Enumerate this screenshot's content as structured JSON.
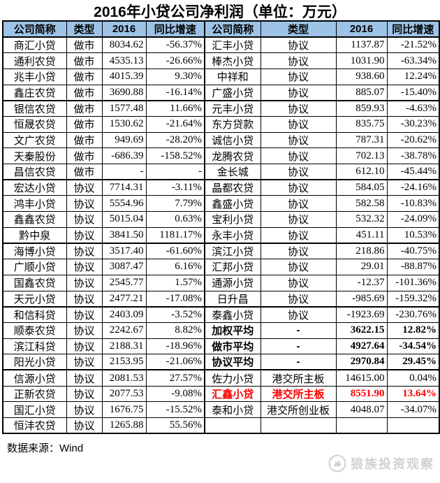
{
  "title": "2016年小贷公司净利润（单位：万元）",
  "columns": [
    "公司简称",
    "类型",
    "2016",
    "同比增速"
  ],
  "left_rows": [
    [
      "商汇小贷",
      "做市",
      "8034.62",
      "-56.37%",
      ""
    ],
    [
      "通利农贷",
      "做市",
      "4535.13",
      "-26.66%",
      ""
    ],
    [
      "兆丰小贷",
      "做市",
      "4015.39",
      "9.30%",
      ""
    ],
    [
      "鑫庄农贷",
      "做市",
      "3690.88",
      "-16.14%",
      ""
    ],
    [
      "银信农贷",
      "做市",
      "1577.48",
      "11.66%",
      ""
    ],
    [
      "恒晟农贷",
      "做市",
      "1530.62",
      "-21.64%",
      ""
    ],
    [
      "文广农贷",
      "做市",
      "949.69",
      "-28.20%",
      ""
    ],
    [
      "天秦股份",
      "做市",
      "-686.39",
      "-158.52%",
      ""
    ],
    [
      "昌信农贷",
      "做市",
      "-",
      "-",
      ""
    ],
    [
      "宏达小贷",
      "协议",
      "7714.31",
      "-3.11%",
      ""
    ],
    [
      "鸿丰小贷",
      "协议",
      "5554.96",
      "7.79%",
      ""
    ],
    [
      "鑫鑫农贷",
      "协议",
      "5015.04",
      "0.63%",
      ""
    ],
    [
      "黔中泉",
      "协议",
      "3841.50",
      "1181.17%",
      ""
    ],
    [
      "海博小贷",
      "协议",
      "3517.40",
      "-61.60%",
      ""
    ],
    [
      "广顺小贷",
      "协议",
      "3087.47",
      "6.16%",
      ""
    ],
    [
      "国鑫农贷",
      "协议",
      "2545.77",
      "1.57%",
      ""
    ],
    [
      "天元小贷",
      "协议",
      "2477.21",
      "-17.08%",
      ""
    ],
    [
      "和信科贷",
      "协议",
      "2403.09",
      "-3.52%",
      ""
    ],
    [
      "顺泰农贷",
      "协议",
      "2242.67",
      "8.82%",
      ""
    ],
    [
      "滨江科贷",
      "协议",
      "2188.31",
      "-18.96%",
      ""
    ],
    [
      "阳光小贷",
      "协议",
      "2153.95",
      "-21.06%",
      ""
    ],
    [
      "信源小贷",
      "协议",
      "2081.53",
      "27.57%",
      ""
    ],
    [
      "正新农贷",
      "协议",
      "2077.53",
      "-9.08%",
      ""
    ],
    [
      "国汇小贷",
      "协议",
      "1676.75",
      "-15.52%",
      ""
    ],
    [
      "恒沣农贷",
      "协议",
      "1265.88",
      "55.56%",
      ""
    ]
  ],
  "right_rows": [
    [
      "汇丰小贷",
      "协议",
      "1137.87",
      "-21.52%",
      ""
    ],
    [
      "棒杰小贷",
      "协议",
      "1031.90",
      "-63.34%",
      ""
    ],
    [
      "中祥和",
      "协议",
      "938.60",
      "12.24%",
      ""
    ],
    [
      "广盛小贷",
      "协议",
      "885.07",
      "-15.40%",
      ""
    ],
    [
      "元丰小贷",
      "协议",
      "859.93",
      "-4.63%",
      ""
    ],
    [
      "东方贷款",
      "协议",
      "835.75",
      "-30.23%",
      ""
    ],
    [
      "诚信小贷",
      "协议",
      "787.31",
      "-20.62%",
      ""
    ],
    [
      "龙腾农贷",
      "协议",
      "702.13",
      "-38.78%",
      ""
    ],
    [
      "金长城",
      "协议",
      "612.10",
      "-45.44%",
      ""
    ],
    [
      "晶都农贷",
      "协议",
      "584.05",
      "-24.16%",
      ""
    ],
    [
      "鑫盛小贷",
      "协议",
      "582.58",
      "-10.83%",
      ""
    ],
    [
      "宝利小贷",
      "协议",
      "532.32",
      "-24.09%",
      ""
    ],
    [
      "永丰小贷",
      "协议",
      "451.11",
      "10.53%",
      ""
    ],
    [
      "滨江小贷",
      "协议",
      "218.86",
      "-40.75%",
      ""
    ],
    [
      "汇邦小贷",
      "协议",
      "29.01",
      "-88.87%",
      ""
    ],
    [
      "通源小贷",
      "协议",
      "-12.37",
      "-101.36%",
      ""
    ],
    [
      "日升昌",
      "协议",
      "-985.69",
      "-159.32%",
      ""
    ],
    [
      "泰鑫小贷",
      "协议",
      "-1923.69",
      "-230.76%",
      ""
    ],
    [
      "加权平均",
      "-",
      "3622.15",
      "12.82%",
      "bold"
    ],
    [
      "做市平均",
      "-",
      "4927.64",
      "-34.54%",
      "bold"
    ],
    [
      "协议平均",
      "-",
      "2970.84",
      "29.45%",
      "bold"
    ],
    [
      "佐力小贷",
      "港交所主板",
      "14615.00",
      "0.04%",
      ""
    ],
    [
      "汇鑫小贷",
      "港交所主板",
      "8551.90",
      "13.64%",
      "red"
    ],
    [
      "泰和小贷",
      "港交所创业板",
      "4048.07",
      "-34.07%",
      ""
    ],
    [
      "",
      "",
      "",
      "",
      ""
    ]
  ],
  "thick_border_after_rows": [
    4,
    9,
    13,
    17,
    21
  ],
  "footer": {
    "source": "数据来源：Wind"
  },
  "watermark": {
    "text": "狼族投资观察",
    "icon": "wolf-circle-logo"
  },
  "colors": {
    "header_bg": "#9DC3E6",
    "red": "#FF0000",
    "border": "#000000"
  }
}
